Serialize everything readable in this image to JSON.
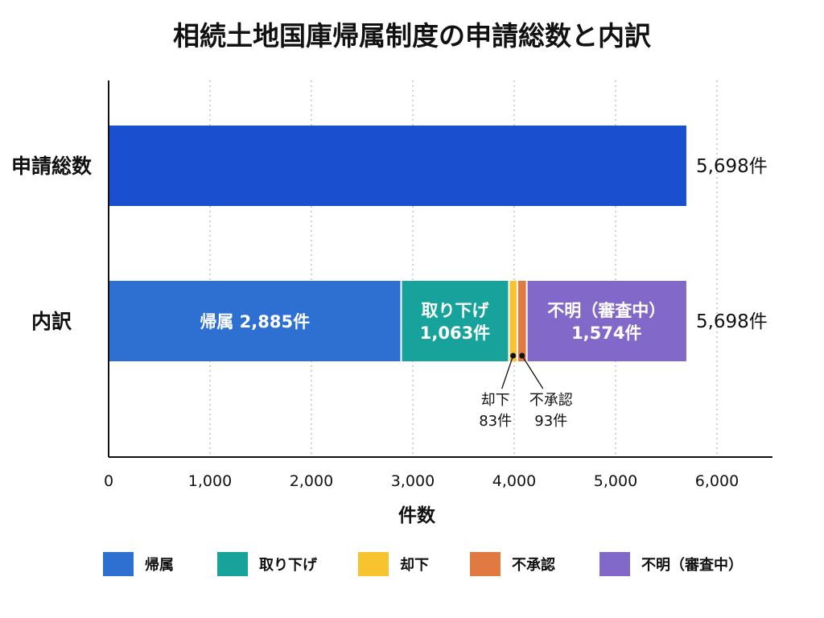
{
  "chart_data": {
    "type": "bar",
    "orientation": "horizontal",
    "stacked": true,
    "title": "相続土地国庫帰属制度の申請総数と内訳",
    "xlabel": "件数",
    "xlim": [
      0,
      6000
    ],
    "xticks": [
      "0",
      "1,000",
      "2,000",
      "3,000",
      "4,000",
      "5,000",
      "6,000"
    ],
    "grid": "vertical dotted",
    "categories": [
      "申請総数",
      "内訳"
    ],
    "total": {
      "value": 5698,
      "label": "5,698件",
      "color": "#1a4fd0"
    },
    "breakdown_total_label": "5,698件",
    "series": [
      {
        "name": "帰属",
        "value": 2885,
        "label_lines": [
          "帰属 2,885件"
        ],
        "color": "#2e6fd2"
      },
      {
        "name": "取り下げ",
        "value": 1063,
        "label_lines": [
          "取り下げ",
          "1,063件"
        ],
        "color": "#17a39b"
      },
      {
        "name": "却下",
        "value": 83,
        "callout_lines": [
          "却下",
          "83件"
        ],
        "color": "#f7c42f"
      },
      {
        "name": "不承認",
        "value": 93,
        "callout_lines": [
          "不承認",
          "93件"
        ],
        "color": "#e07a42"
      },
      {
        "name": "不明（審査中）",
        "value": 1574,
        "label_lines": [
          "不明（審査中）",
          "1,574件"
        ],
        "color": "#8268c8"
      }
    ],
    "legend": {
      "position": "bottom",
      "items": [
        "帰属",
        "取り下げ",
        "却下",
        "不承認",
        "不明（審査中）"
      ]
    }
  }
}
